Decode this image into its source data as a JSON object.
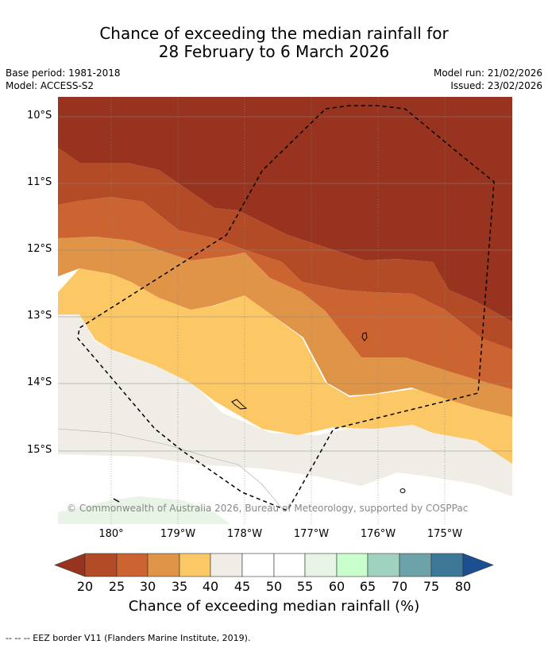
{
  "title": {
    "line1": "Chance of exceeding the median rainfall for",
    "line2": "28 February to 6 March 2026"
  },
  "meta": {
    "base_period": "Base period: 1981-2018",
    "model": "Model: ACCESS-S2",
    "model_run": "Model run: 21/02/2026",
    "issued": "Issued: 23/02/2026"
  },
  "axes": {
    "lat_labels": [
      "10°S",
      "11°S",
      "12°S",
      "13°S",
      "14°S",
      "15°S"
    ],
    "lon_labels": [
      "180°",
      "179°W",
      "178°W",
      "177°W",
      "176°W",
      "175°W"
    ]
  },
  "map": {
    "copyright": "© Commonwealth of Australia 2026, Bureau of Meteorology, supported by COSPPac",
    "bands": [
      {
        "name": "<20",
        "color": "#97331e"
      },
      {
        "name": "20-25",
        "color": "#b34c26"
      },
      {
        "name": "25-30",
        "color": "#cc6432"
      },
      {
        "name": "30-35",
        "color": "#e09447"
      },
      {
        "name": "35-40",
        "color": "#fcc865"
      },
      {
        "name": "40-45",
        "color": "#f0ede6"
      },
      {
        "name": "45-55",
        "color": "#ffffff"
      },
      {
        "name": "55-60",
        "color": "#e8f4e6"
      }
    ]
  },
  "colorbar": {
    "ticks": [
      "20",
      "25",
      "30",
      "35",
      "40",
      "45",
      "50",
      "55",
      "60",
      "65",
      "70",
      "75",
      "80"
    ],
    "colors": [
      "#b34c26",
      "#cc6432",
      "#e09447",
      "#fcc865",
      "#f0ede6",
      "#ffffff",
      "#ffffff",
      "#e8f4e6",
      "#c8ffcc",
      "#9fd2bf",
      "#6ca3a8",
      "#3e7898"
    ],
    "under_color": "#97331e",
    "over_color": "#1a5090",
    "label": "Chance of exceeding median rainfall (%)"
  },
  "footer": "--  --  -- EEZ border V11 (Flanders Marine Institute, 2019)."
}
